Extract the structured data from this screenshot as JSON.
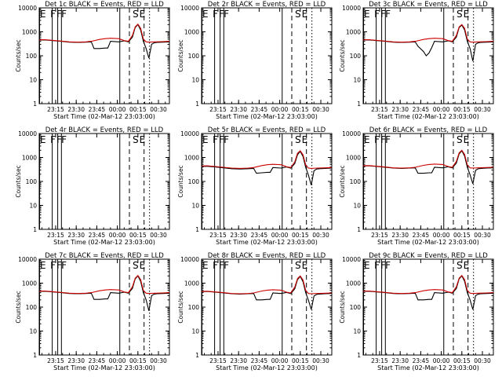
{
  "figure": {
    "ylabel": "Counts/sec",
    "xlabel": "Start Time (02-Mar-12 23:03:00)",
    "legend_suffix": "BLACK = Events, RED = LLD",
    "ticks_y": [
      "1",
      "10",
      "100",
      "1000",
      "10000"
    ],
    "ticks_x": [
      "23:15",
      "23:30",
      "23:45",
      "00:00",
      "00:15",
      "00:30"
    ],
    "colors": {
      "events": "#000000",
      "lld": "#cc0000"
    }
  },
  "chart_data": [
    {
      "type": "line",
      "title": "Det 1c BLACK = Events, RED = LLD",
      "detector": "Det 1c",
      "markers": [
        "E",
        "F",
        "F",
        "F",
        "S",
        "E"
      ],
      "ylim": [
        1,
        10000
      ],
      "yscale": "log",
      "x_unit": "minutes since 23:03:00",
      "xlim": [
        0,
        95
      ],
      "series": [
        {
          "name": "Events",
          "x": [
            0,
            4,
            10,
            16,
            22,
            28,
            34,
            38,
            40,
            44,
            48,
            50,
            52,
            58,
            62,
            65,
            68,
            70,
            72,
            74,
            76,
            78,
            80,
            82,
            84,
            86,
            90,
            95
          ],
          "values": [
            450,
            460,
            430,
            400,
            370,
            360,
            370,
            380,
            200,
            200,
            210,
            210,
            400,
            380,
            420,
            380,
            600,
            1500,
            2000,
            1200,
            400,
            200,
            80,
            300,
            350,
            360,
            370,
            380
          ]
        },
        {
          "name": "LLD",
          "x": [
            0,
            4,
            10,
            16,
            22,
            28,
            34,
            38,
            44,
            48,
            52,
            58,
            62,
            65,
            68,
            70,
            72,
            74,
            76,
            78,
            80,
            84,
            90,
            95
          ],
          "values": [
            460,
            470,
            440,
            410,
            380,
            370,
            380,
            400,
            480,
            520,
            540,
            520,
            430,
            400,
            700,
            1600,
            2100,
            1400,
            500,
            380,
            370,
            380,
            390,
            400
          ]
        }
      ]
    },
    {
      "type": "line",
      "title": "Det 2r BLACK = Events, RED = LLD",
      "detector": "Det 2r",
      "markers": [
        "E",
        "F",
        "F",
        "F",
        "S",
        "E"
      ],
      "ylim": [
        1,
        10000
      ],
      "yscale": "log",
      "x_unit": "minutes since 23:03:00",
      "xlim": [
        0,
        95
      ],
      "series": []
    },
    {
      "type": "line",
      "title": "Det 3c BLACK = Events, RED = LLD",
      "detector": "Det 3c",
      "markers": [
        "E",
        "F",
        "F",
        "F",
        "S",
        "E"
      ],
      "ylim": [
        1,
        10000
      ],
      "yscale": "log",
      "x_unit": "minutes since 23:03:00",
      "xlim": [
        0,
        95
      ],
      "series": [
        {
          "name": "Events",
          "x": [
            0,
            4,
            10,
            16,
            22,
            28,
            34,
            38,
            40,
            44,
            46,
            48,
            50,
            52,
            58,
            62,
            65,
            68,
            70,
            72,
            74,
            76,
            78,
            80,
            82,
            84,
            86,
            90,
            95
          ],
          "values": [
            450,
            460,
            430,
            400,
            370,
            360,
            370,
            380,
            250,
            150,
            100,
            130,
            220,
            400,
            380,
            420,
            380,
            600,
            1500,
            1900,
            1200,
            400,
            200,
            60,
            300,
            350,
            360,
            370,
            380
          ]
        },
        {
          "name": "LLD",
          "x": [
            0,
            4,
            10,
            16,
            22,
            28,
            34,
            38,
            44,
            48,
            52,
            58,
            62,
            65,
            68,
            70,
            72,
            74,
            76,
            78,
            80,
            84,
            90,
            95
          ],
          "values": [
            460,
            470,
            440,
            410,
            380,
            370,
            380,
            400,
            480,
            520,
            540,
            520,
            430,
            400,
            700,
            1600,
            2000,
            1400,
            500,
            380,
            370,
            380,
            390,
            400
          ]
        }
      ]
    },
    {
      "type": "line",
      "title": "Det 4r BLACK = Events, RED = LLD",
      "detector": "Det 4r",
      "markers": [
        "E",
        "F",
        "F",
        "F",
        "S",
        "E"
      ],
      "ylim": [
        1,
        10000
      ],
      "yscale": "log",
      "x_unit": "minutes since 23:03:00",
      "xlim": [
        0,
        95
      ],
      "series": []
    },
    {
      "type": "line",
      "title": "Det 5r BLACK = Events, RED = LLD",
      "detector": "Det 5r",
      "markers": [
        "E",
        "F",
        "F",
        "F",
        "S",
        "E"
      ],
      "ylim": [
        1,
        10000
      ],
      "yscale": "log",
      "x_unit": "minutes since 23:03:00",
      "xlim": [
        0,
        95
      ],
      "series": [
        {
          "name": "Events",
          "x": [
            0,
            4,
            10,
            16,
            22,
            28,
            34,
            38,
            40,
            44,
            48,
            50,
            52,
            58,
            62,
            65,
            68,
            70,
            72,
            74,
            76,
            78,
            80,
            82,
            84,
            86,
            90,
            95
          ],
          "values": [
            420,
            430,
            400,
            370,
            340,
            330,
            340,
            350,
            220,
            230,
            240,
            240,
            380,
            360,
            400,
            360,
            550,
            1300,
            1800,
            1100,
            380,
            180,
            70,
            280,
            330,
            340,
            350,
            360
          ]
        },
        {
          "name": "LLD",
          "x": [
            0,
            4,
            10,
            16,
            22,
            28,
            34,
            38,
            44,
            48,
            52,
            58,
            62,
            65,
            68,
            70,
            72,
            74,
            76,
            78,
            80,
            84,
            90,
            95
          ],
          "values": [
            440,
            450,
            420,
            390,
            360,
            350,
            360,
            380,
            460,
            500,
            520,
            500,
            410,
            380,
            650,
            1500,
            1900,
            1300,
            480,
            360,
            350,
            360,
            370,
            380
          ]
        }
      ]
    },
    {
      "type": "line",
      "title": "Det 6r BLACK = Events, RED = LLD",
      "detector": "Det 6r",
      "markers": [
        "E",
        "F",
        "F",
        "F",
        "S",
        "E"
      ],
      "ylim": [
        1,
        10000
      ],
      "yscale": "log",
      "x_unit": "minutes since 23:03:00",
      "xlim": [
        0,
        95
      ],
      "series": [
        {
          "name": "Events",
          "x": [
            0,
            4,
            10,
            16,
            22,
            28,
            34,
            38,
            40,
            44,
            48,
            50,
            52,
            58,
            62,
            65,
            68,
            70,
            72,
            74,
            76,
            78,
            80,
            82,
            84,
            86,
            90,
            95
          ],
          "values": [
            440,
            450,
            420,
            390,
            360,
            350,
            360,
            370,
            220,
            220,
            230,
            230,
            390,
            370,
            410,
            370,
            580,
            1400,
            1900,
            1150,
            390,
            190,
            80,
            290,
            340,
            350,
            360,
            370
          ]
        },
        {
          "name": "LLD",
          "x": [
            0,
            4,
            10,
            16,
            22,
            28,
            34,
            38,
            44,
            48,
            52,
            58,
            62,
            65,
            68,
            70,
            72,
            74,
            76,
            78,
            80,
            84,
            90,
            95
          ],
          "values": [
            450,
            460,
            430,
            400,
            370,
            360,
            370,
            390,
            470,
            510,
            530,
            510,
            420,
            390,
            680,
            1550,
            2000,
            1350,
            490,
            370,
            360,
            370,
            380,
            390
          ]
        }
      ]
    },
    {
      "type": "line",
      "title": "Det 7c BLACK = Events, RED = LLD",
      "detector": "Det 7c",
      "markers": [
        "E",
        "F",
        "F",
        "F",
        "S",
        "E"
      ],
      "ylim": [
        1,
        10000
      ],
      "yscale": "log",
      "x_unit": "minutes since 23:03:00",
      "xlim": [
        0,
        95
      ],
      "series": [
        {
          "name": "Events",
          "x": [
            0,
            4,
            10,
            16,
            22,
            28,
            34,
            38,
            40,
            44,
            48,
            50,
            52,
            58,
            62,
            65,
            68,
            70,
            72,
            74,
            76,
            78,
            80,
            82,
            84,
            86,
            90,
            95
          ],
          "values": [
            450,
            460,
            430,
            400,
            370,
            360,
            370,
            380,
            210,
            210,
            220,
            220,
            400,
            380,
            420,
            380,
            600,
            1500,
            2000,
            1200,
            400,
            200,
            70,
            300,
            350,
            360,
            370,
            380
          ]
        },
        {
          "name": "LLD",
          "x": [
            0,
            4,
            10,
            16,
            22,
            28,
            34,
            38,
            44,
            48,
            52,
            58,
            62,
            65,
            68,
            70,
            72,
            74,
            76,
            78,
            80,
            84,
            90,
            95
          ],
          "values": [
            460,
            470,
            440,
            410,
            380,
            370,
            380,
            400,
            480,
            520,
            540,
            520,
            430,
            400,
            700,
            1600,
            2100,
            1400,
            500,
            380,
            370,
            380,
            390,
            400
          ]
        }
      ]
    },
    {
      "type": "line",
      "title": "Det 8r BLACK = Events, RED = LLD",
      "detector": "Det 8r",
      "markers": [
        "E",
        "F",
        "F",
        "F",
        "S",
        "E"
      ],
      "ylim": [
        1,
        10000
      ],
      "yscale": "log",
      "x_unit": "minutes since 23:03:00",
      "xlim": [
        0,
        95
      ],
      "series": [
        {
          "name": "Events",
          "x": [
            0,
            4,
            10,
            16,
            22,
            28,
            34,
            38,
            40,
            44,
            48,
            50,
            52,
            58,
            62,
            65,
            68,
            70,
            72,
            74,
            76,
            78,
            80,
            82,
            84,
            86,
            90,
            95
          ],
          "values": [
            440,
            450,
            420,
            390,
            360,
            350,
            360,
            370,
            200,
            200,
            210,
            210,
            390,
            370,
            410,
            370,
            580,
            1400,
            1900,
            1150,
            390,
            190,
            80,
            290,
            340,
            350,
            360,
            370
          ]
        },
        {
          "name": "LLD",
          "x": [
            0,
            4,
            10,
            16,
            22,
            28,
            34,
            38,
            44,
            48,
            52,
            58,
            62,
            65,
            68,
            70,
            72,
            74,
            76,
            78,
            80,
            84,
            90,
            95
          ],
          "values": [
            450,
            460,
            430,
            400,
            370,
            360,
            370,
            390,
            470,
            510,
            530,
            510,
            420,
            390,
            680,
            1550,
            2000,
            1350,
            490,
            370,
            360,
            370,
            380,
            390
          ]
        }
      ]
    },
    {
      "type": "line",
      "title": "Det 9c BLACK = Events, RED = LLD",
      "detector": "Det 9c",
      "markers": [
        "E",
        "F",
        "F",
        "F",
        "S",
        "E"
      ],
      "ylim": [
        1,
        10000
      ],
      "yscale": "log",
      "x_unit": "minutes since 23:03:00",
      "xlim": [
        0,
        95
      ],
      "series": [
        {
          "name": "Events",
          "x": [
            0,
            4,
            10,
            16,
            22,
            28,
            34,
            38,
            40,
            44,
            48,
            50,
            52,
            58,
            62,
            65,
            68,
            70,
            72,
            74,
            76,
            78,
            80,
            82,
            84,
            86,
            90,
            95
          ],
          "values": [
            450,
            460,
            430,
            400,
            370,
            360,
            370,
            380,
            200,
            200,
            210,
            210,
            400,
            380,
            420,
            380,
            600,
            1500,
            2000,
            1200,
            400,
            200,
            80,
            300,
            350,
            360,
            370,
            380
          ]
        },
        {
          "name": "LLD",
          "x": [
            0,
            4,
            10,
            16,
            22,
            28,
            34,
            38,
            44,
            48,
            52,
            58,
            62,
            65,
            68,
            70,
            72,
            74,
            76,
            78,
            80,
            84,
            90,
            95
          ],
          "values": [
            460,
            470,
            440,
            410,
            380,
            370,
            380,
            400,
            480,
            520,
            540,
            520,
            430,
            400,
            700,
            1600,
            2100,
            1400,
            500,
            380,
            370,
            380,
            390,
            400
          ]
        }
      ]
    }
  ]
}
